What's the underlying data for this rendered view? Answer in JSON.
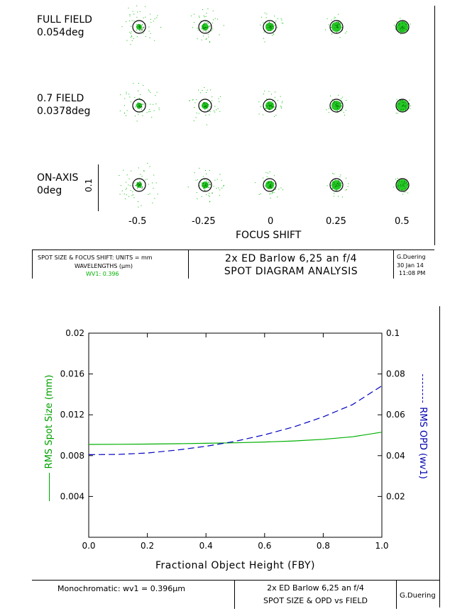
{
  "spot_diagram": {
    "fields": [
      {
        "name": "FULL FIELD",
        "angle": "0.054deg"
      },
      {
        "name": "0.7 FIELD",
        "angle": "0.0378deg"
      },
      {
        "name": "ON-AXIS",
        "angle": "0deg"
      }
    ],
    "scale_label": "0.1",
    "focus_shifts": [
      "-0.5",
      "-0.25",
      "0",
      "0.25",
      "0.5"
    ],
    "focus_shift_label": "FOCUS SHIFT",
    "spot_color": "#00c000",
    "title_block": {
      "units_text": "SPOT SIZE & FOCUS SHIFT: UNITS = mm",
      "wavelengths_text": "WAVELENGTHS (µm)",
      "wv1_text": "WV1: 0.396",
      "title_line1": "2x ED Barlow 6,25 an f/4",
      "title_line2": "SPOT DIAGRAM ANALYSIS",
      "author": "G.Duering",
      "date": "30 Jan 14",
      "time": "11:08 PM"
    }
  },
  "chart_data": {
    "type": "line",
    "xlabel": "Fractional Object Height (FBY)",
    "ylabel_left": "RMS Spot Size (mm)",
    "ylabel_right": "RMS OPD (wv1)",
    "xlim": [
      0,
      1
    ],
    "ylim_left": [
      0,
      0.02
    ],
    "ylim_right": [
      0,
      0.1
    ],
    "x_ticks": [
      "0.0",
      "0.2",
      "0.4",
      "0.6",
      "0.8",
      "1.0"
    ],
    "y_ticks_left": [
      "0.004",
      "0.008",
      "0.012",
      "0.016",
      "0.02"
    ],
    "y_ticks_right": [
      "0.02",
      "0.04",
      "0.06",
      "0.08",
      "0.1"
    ],
    "series": [
      {
        "axis": "left",
        "color": "#00b000",
        "style": "solid",
        "x": [
          0,
          0.1,
          0.2,
          0.3,
          0.4,
          0.5,
          0.6,
          0.7,
          0.8,
          0.9,
          1.0
        ],
        "y": [
          0.0091,
          0.00911,
          0.00913,
          0.00917,
          0.00921,
          0.00926,
          0.00933,
          0.00944,
          0.0096,
          0.00985,
          0.0103
        ]
      },
      {
        "axis": "right",
        "color": "#0000c0",
        "style": "dashed",
        "x": [
          0,
          0.1,
          0.2,
          0.3,
          0.4,
          0.5,
          0.6,
          0.7,
          0.8,
          0.9,
          1.0
        ],
        "y": [
          0.0405,
          0.0406,
          0.0413,
          0.0427,
          0.0446,
          0.047,
          0.0502,
          0.0541,
          0.059,
          0.065,
          0.0742
        ]
      }
    ],
    "title_block": {
      "left_text": "Monochromatic: wv1 = 0.396µm",
      "title_line1": "2x ED Barlow 6,25 an f/4",
      "title_line2": "SPOT SIZE & OPD vs FIELD",
      "author": "G.Duering"
    }
  }
}
